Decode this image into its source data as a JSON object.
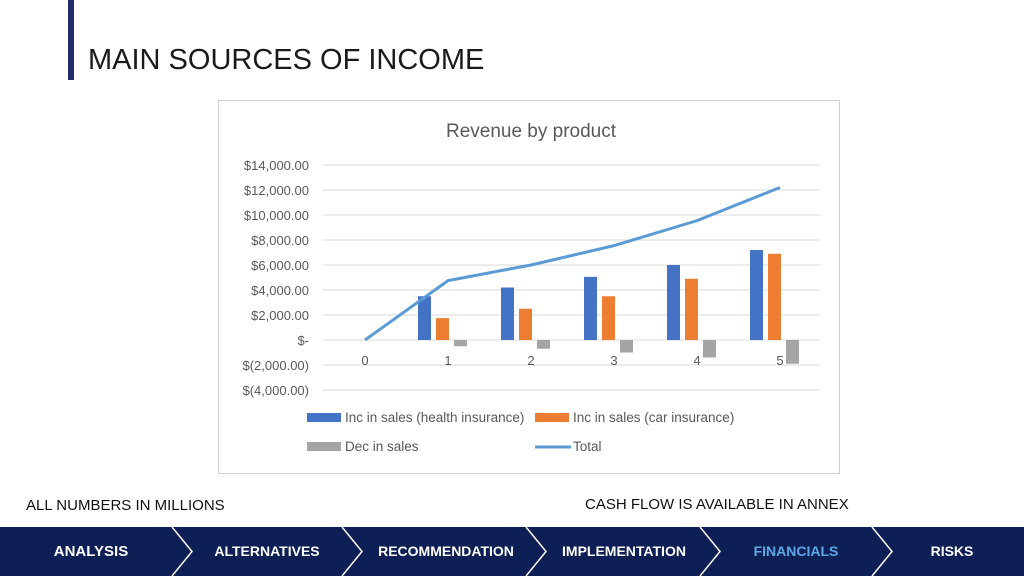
{
  "header": {
    "title": "MAIN SOURCES OF INCOME"
  },
  "chart_data": {
    "type": "bar",
    "title": "Revenue by product",
    "categories": [
      "0",
      "1",
      "2",
      "3",
      "4",
      "5"
    ],
    "series": [
      {
        "name": "Inc in sales (health insurance)",
        "type": "bar",
        "color": "#4472c4",
        "values": [
          0,
          3500,
          4200,
          5050,
          6000,
          7200
        ]
      },
      {
        "name": "Inc in sales (car insurance)",
        "type": "bar",
        "color": "#ed7d31",
        "values": [
          0,
          1750,
          2500,
          3500,
          4900,
          6900
        ]
      },
      {
        "name": "Dec in sales",
        "type": "bar",
        "color": "#a5a5a5",
        "values": [
          0,
          -500,
          -700,
          -1000,
          -1400,
          -1900
        ]
      },
      {
        "name": "Total",
        "type": "line",
        "color": "#5b9bd5",
        "values": [
          0,
          4750,
          6000,
          7550,
          9550,
          12200
        ]
      }
    ],
    "yticks": [
      "$14,000.00",
      "$12,000.00",
      "$10,000.00",
      "$8,000.00",
      "$6,000.00",
      "$4,000.00",
      "$2,000.00",
      "$-",
      "$(2,000.00)",
      "$(4,000.00)"
    ],
    "ytick_values": [
      14000,
      12000,
      10000,
      8000,
      6000,
      4000,
      2000,
      0,
      -2000,
      -4000
    ],
    "ylim": [
      -4000,
      14000
    ],
    "grid": true,
    "legend_position": "bottom"
  },
  "notes": {
    "left": "ALL NUMBERS IN MILLIONS",
    "right": "CASH FLOW IS AVAILABLE IN ANNEX"
  },
  "nav": {
    "items": [
      {
        "label": "ANALYSIS",
        "active": false
      },
      {
        "label": "ALTERNATIVES",
        "active": false
      },
      {
        "label": "RECOMMENDATION",
        "active": false
      },
      {
        "label": "IMPLEMENTATION",
        "active": false
      },
      {
        "label": "FINANCIALS",
        "active": true
      },
      {
        "label": "RISKS",
        "active": false
      }
    ],
    "colors": {
      "background": "#0d1f54",
      "active_text": "#5fa8e8",
      "text": "#ffffff"
    }
  }
}
